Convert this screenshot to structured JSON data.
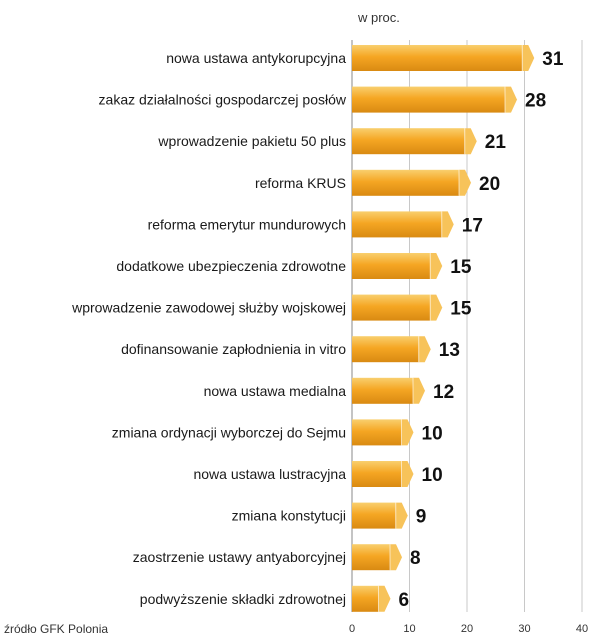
{
  "chart_data": {
    "type": "bar",
    "orientation": "horizontal",
    "unit_label": "w proc.",
    "categories": [
      "nowa ustawa antykorupcyjna",
      "zakaz działalności gospodarczej posłów",
      "wprowadzenie pakietu 50 plus",
      "reforma KRUS",
      "reforma emerytur mundurowych",
      "dodatkowe ubezpieczenia zdrowotne",
      "wprowadzenie zawodowej służby wojskowej",
      "dofinansowanie zapłodnienia in vitro",
      "nowa ustawa medialna",
      "zmiana ordynacji wyborczej do Sejmu",
      "nowa ustawa lustracyjna",
      "zmiana konstytucji",
      "zaostrzenie ustawy antyaborcyjnej",
      "podwyższenie składki zdrowotnej"
    ],
    "values": [
      31,
      28,
      21,
      20,
      17,
      15,
      15,
      13,
      12,
      10,
      10,
      9,
      8,
      6
    ],
    "xlim": [
      0,
      40
    ],
    "x_ticks": [
      "0",
      "10",
      "20",
      "30",
      "40"
    ],
    "grid": true,
    "colors": {
      "bar_fill": "#f5a623",
      "bar_highlight": "#f9cf6e",
      "bar_shadow": "#d98a12",
      "bar_end": "#f7c35a",
      "grid": "#c8c8c8",
      "axis": "#888888"
    }
  },
  "source": "źródło GFK Polonia"
}
